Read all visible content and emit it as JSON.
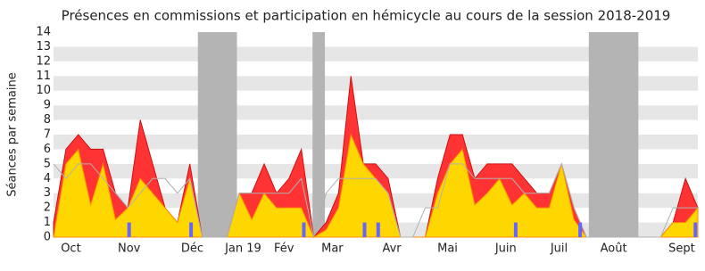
{
  "chart_data": {
    "type": "area",
    "title": "Présences en commissions et participation en hémicycle au cours de la session 2018-2019",
    "y_label": "Séances par semaine",
    "x": [
      0,
      1,
      2,
      3,
      4,
      5,
      6,
      7,
      8,
      9,
      10,
      11,
      12,
      13,
      14,
      15,
      16,
      17,
      18,
      19,
      20,
      21,
      22,
      23,
      24,
      25,
      26,
      27,
      28,
      29,
      30,
      31,
      32,
      33,
      34,
      35,
      36,
      37,
      38,
      39,
      40,
      41,
      42,
      43,
      44,
      45,
      46,
      47,
      48,
      49,
      50,
      51,
      52
    ],
    "xlim": [
      0,
      52
    ],
    "xticks": [
      {
        "value": 1.4,
        "label": "Oct"
      },
      {
        "value": 6.1,
        "label": "Nov"
      },
      {
        "value": 11.2,
        "label": "Déc"
      },
      {
        "value": 15.3,
        "label": "Jan 19"
      },
      {
        "value": 18.6,
        "label": "Fév"
      },
      {
        "value": 22.5,
        "label": "Mar"
      },
      {
        "value": 27.3,
        "label": "Avr"
      },
      {
        "value": 31.8,
        "label": "Mai"
      },
      {
        "value": 36.5,
        "label": "Juin"
      },
      {
        "value": 40.8,
        "label": "Juil"
      },
      {
        "value": 45.2,
        "label": "Août"
      },
      {
        "value": 50.7,
        "label": "Sept"
      }
    ],
    "ylim": [
      0,
      14
    ],
    "yticks": [
      0,
      1,
      2,
      3,
      4,
      5,
      6,
      7,
      8,
      9,
      10,
      11,
      12,
      13,
      14
    ],
    "grid": true,
    "vacations": [
      [
        11.65,
        14.8
      ],
      [
        20.9,
        21.9
      ],
      [
        43.2,
        47.2
      ]
    ],
    "vacation_color": "#b4b4b4",
    "series": [
      {
        "color": "#ff3333",
        "edge": "#cc1111",
        "values": [
          1,
          6,
          7,
          6,
          6,
          3,
          2,
          8,
          5,
          2,
          1,
          5,
          0,
          0,
          0,
          3,
          3,
          5,
          3,
          4,
          6,
          0,
          1,
          3,
          11,
          5,
          5,
          4,
          0,
          0,
          0,
          4,
          7,
          7,
          4,
          5,
          5,
          5,
          4,
          3,
          3,
          5,
          2,
          0,
          0,
          0,
          0,
          0,
          0,
          0,
          1,
          4,
          2
        ]
      },
      {
        "color": "#ffd700",
        "edge": "#ff8c00",
        "values": [
          0,
          5,
          6,
          2.2,
          5,
          1.2,
          2,
          4,
          3,
          2,
          1,
          4,
          0,
          0,
          0,
          3,
          1.2,
          3,
          2,
          2,
          2,
          0,
          0.5,
          2,
          7,
          5,
          4,
          3,
          0,
          0,
          0,
          3,
          5,
          6,
          2.2,
          3,
          4,
          2.2,
          3,
          2,
          2,
          5,
          1.2,
          0,
          0,
          0,
          0,
          0,
          0,
          0,
          1,
          1,
          2
        ]
      }
    ],
    "median": {
      "color": "#b0b0b0",
      "values": [
        5,
        4,
        5,
        5,
        4,
        3,
        2,
        3,
        4,
        4,
        3,
        4,
        0,
        0,
        0,
        3,
        3,
        3,
        3,
        3,
        4,
        0,
        3,
        4,
        4,
        4,
        4,
        3,
        0,
        0,
        2,
        2,
        5,
        5,
        4,
        4,
        4,
        4,
        3,
        3,
        3,
        5,
        2,
        0,
        0,
        0,
        0,
        0,
        0,
        0,
        2,
        2,
        2
      ]
    },
    "questions": {
      "color": "#6666ff",
      "x": [
        6.1,
        11.1,
        20.2,
        25.1,
        26.2,
        37.3,
        42.5,
        51.8
      ],
      "values": [
        1,
        1,
        1,
        1,
        1,
        1,
        1,
        1
      ]
    }
  }
}
